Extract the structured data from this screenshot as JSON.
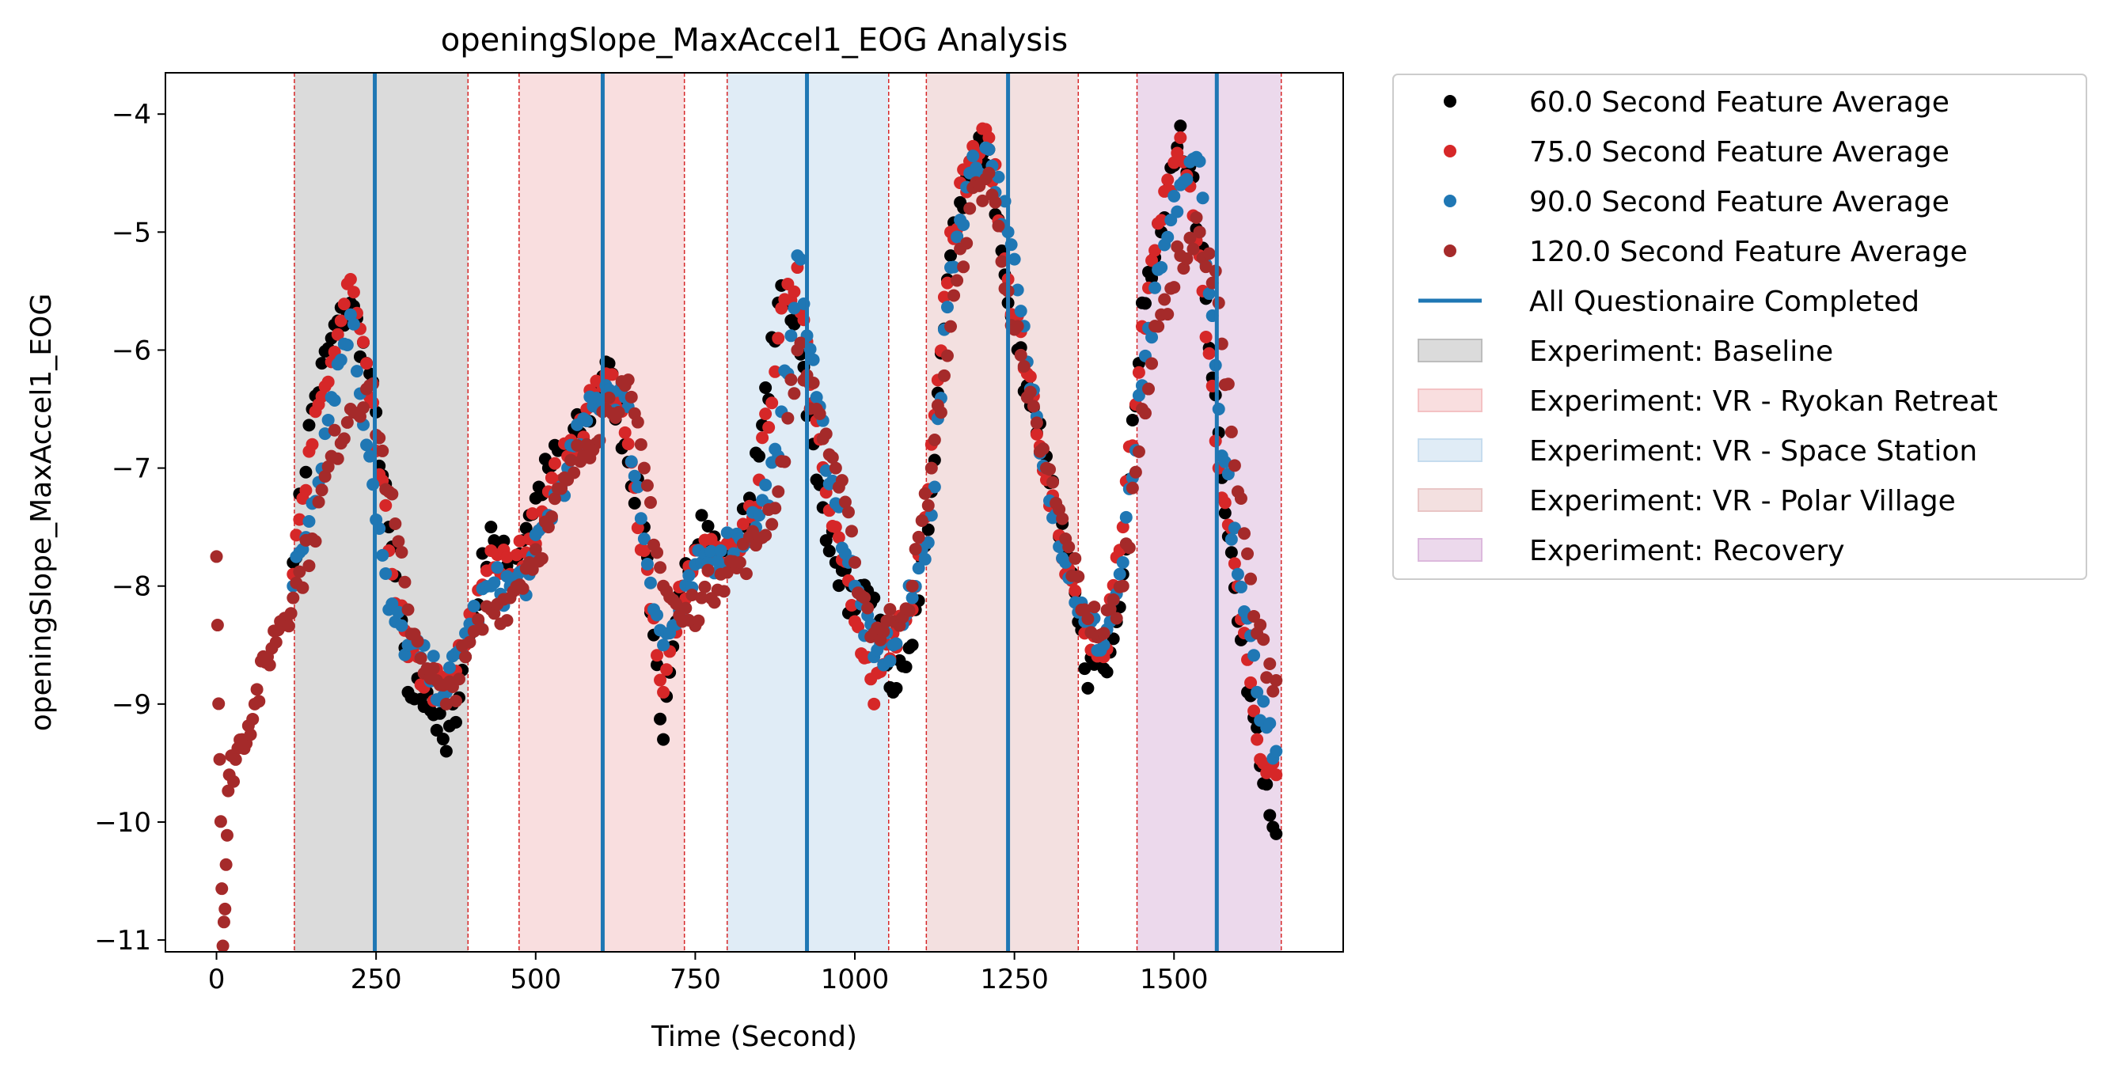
{
  "chart_data": {
    "type": "scatter",
    "title": "openingSlope_MaxAccel1_EOG Analysis",
    "xlabel": "Time (Second)",
    "ylabel": "openingSlope_MaxAccel1_EOG",
    "xlim": [
      -80,
      1765
    ],
    "ylim": [
      -11.1,
      -3.65
    ],
    "xticks": [
      0,
      250,
      500,
      750,
      1000,
      1250,
      1500
    ],
    "yticks": [
      -11,
      -10,
      -9,
      -8,
      -7,
      -6,
      -5,
      -4
    ],
    "grid": false,
    "legend_position": "outside-right",
    "series": [
      {
        "name": "60.0 Second Feature Average",
        "color": "#000000",
        "x": [
          120,
          150,
          180,
          210,
          240,
          270,
          300,
          330,
          360,
          390,
          430,
          460,
          490,
          520,
          550,
          580,
          610,
          640,
          670,
          700,
          730,
          760,
          790,
          820,
          850,
          880,
          910,
          940,
          970,
          1000,
          1030,
          1060,
          1090,
          1120,
          1150,
          1180,
          1210,
          1240,
          1270,
          1300,
          1330,
          1360,
          1390,
          1420,
          1450,
          1480,
          1510,
          1540,
          1570,
          1600,
          1630,
          1660
        ],
        "y": [
          -7.8,
          -6.5,
          -5.9,
          -5.6,
          -6.2,
          -7.5,
          -8.9,
          -8.9,
          -9.4,
          -8.6,
          -7.5,
          -7.9,
          -7.4,
          -7.0,
          -6.8,
          -6.6,
          -6.1,
          -6.8,
          -7.5,
          -9.3,
          -8.0,
          -7.4,
          -7.8,
          -7.6,
          -6.9,
          -5.6,
          -5.7,
          -7.1,
          -7.8,
          -8.2,
          -8.1,
          -8.9,
          -8.5,
          -7.2,
          -5.2,
          -4.4,
          -4.3,
          -5.6,
          -6.3,
          -6.9,
          -7.7,
          -8.7,
          -8.7,
          -7.9,
          -5.6,
          -5.0,
          -4.1,
          -5.0,
          -6.7,
          -8.3,
          -9.2,
          -10.1
        ]
      },
      {
        "name": "75.0 Second Feature Average",
        "color": "#d62728",
        "x": [
          120,
          150,
          180,
          210,
          240,
          270,
          300,
          330,
          360,
          390,
          430,
          460,
          490,
          520,
          550,
          580,
          610,
          640,
          670,
          700,
          730,
          760,
          790,
          820,
          850,
          880,
          910,
          940,
          970,
          1000,
          1030,
          1060,
          1090,
          1120,
          1150,
          1180,
          1210,
          1240,
          1270,
          1300,
          1330,
          1360,
          1390,
          1420,
          1450,
          1480,
          1510,
          1540,
          1570,
          1600,
          1630,
          1660
        ],
        "y": [
          -7.9,
          -6.8,
          -6.1,
          -5.4,
          -6.4,
          -7.7,
          -8.6,
          -8.8,
          -8.9,
          -8.5,
          -7.7,
          -7.9,
          -7.6,
          -7.2,
          -6.9,
          -6.5,
          -6.2,
          -6.7,
          -7.7,
          -8.9,
          -8.0,
          -7.7,
          -7.8,
          -7.7,
          -7.1,
          -5.9,
          -5.3,
          -6.6,
          -7.5,
          -8.3,
          -9.0,
          -8.4,
          -8.2,
          -6.8,
          -5.0,
          -4.4,
          -4.2,
          -5.4,
          -6.2,
          -7.1,
          -7.9,
          -8.4,
          -8.6,
          -7.5,
          -5.8,
          -4.9,
          -4.2,
          -5.2,
          -7.0,
          -8.0,
          -9.3,
          -9.6
        ]
      },
      {
        "name": "90.0 Second Feature Average",
        "color": "#1f77b4",
        "x": [
          120,
          150,
          180,
          210,
          240,
          270,
          300,
          330,
          360,
          390,
          430,
          460,
          490,
          520,
          550,
          580,
          610,
          640,
          670,
          700,
          730,
          760,
          790,
          820,
          850,
          880,
          910,
          940,
          970,
          1000,
          1030,
          1060,
          1090,
          1120,
          1150,
          1180,
          1210,
          1240,
          1270,
          1300,
          1330,
          1360,
          1390,
          1420,
          1450,
          1480,
          1510,
          1540,
          1570,
          1600,
          1630,
          1660
        ],
        "y": [
          -8.0,
          -7.3,
          -6.4,
          -5.7,
          -6.9,
          -8.2,
          -8.5,
          -8.7,
          -8.9,
          -8.4,
          -8.0,
          -8.0,
          -7.9,
          -7.4,
          -7.0,
          -6.6,
          -6.3,
          -6.4,
          -7.6,
          -8.5,
          -8.2,
          -7.8,
          -7.7,
          -7.6,
          -7.4,
          -6.9,
          -5.2,
          -6.4,
          -7.3,
          -8.0,
          -8.6,
          -8.5,
          -8.1,
          -7.4,
          -5.3,
          -4.5,
          -4.3,
          -5.0,
          -6.1,
          -7.0,
          -7.8,
          -8.3,
          -8.5,
          -7.8,
          -6.3,
          -5.3,
          -4.6,
          -4.4,
          -6.5,
          -7.9,
          -8.9,
          -9.4
        ]
      },
      {
        "name": "120.0 Second Feature Average",
        "color": "#a52a2a",
        "x": [
          0,
          10,
          20,
          40,
          60,
          80,
          100,
          120,
          150,
          180,
          210,
          240,
          270,
          300,
          330,
          360,
          390,
          430,
          460,
          490,
          520,
          550,
          580,
          610,
          640,
          670,
          700,
          730,
          760,
          790,
          820,
          850,
          880,
          910,
          940,
          970,
          1000,
          1030,
          1060,
          1090,
          1120,
          1150,
          1180,
          1210,
          1240,
          1270,
          1300,
          1330,
          1360,
          1390,
          1420,
          1450,
          1480,
          1510,
          1540,
          1570,
          1600,
          1630,
          1660
        ],
        "y": [
          -7.75,
          -11.05,
          -9.6,
          -9.3,
          -9.0,
          -8.6,
          -8.3,
          -8.1,
          -7.6,
          -6.9,
          -6.5,
          -6.3,
          -7.2,
          -8.2,
          -8.7,
          -9.0,
          -8.6,
          -8.2,
          -8.1,
          -7.8,
          -7.5,
          -7.1,
          -6.8,
          -6.5,
          -6.3,
          -7.0,
          -8.0,
          -8.3,
          -8.1,
          -7.9,
          -7.8,
          -7.6,
          -7.2,
          -6.0,
          -6.5,
          -7.0,
          -7.8,
          -8.4,
          -8.3,
          -8.0,
          -7.0,
          -5.8,
          -4.8,
          -4.5,
          -5.5,
          -6.4,
          -7.0,
          -7.6,
          -8.2,
          -8.4,
          -8.0,
          -6.5,
          -5.7,
          -5.2,
          -5.0,
          -5.6,
          -7.2,
          -8.4,
          -8.8
        ]
      }
    ],
    "vlines": {
      "name": "All Questionaire Completed",
      "color": "#1f77b4",
      "x": [
        248,
        605,
        925,
        1240,
        1567
      ]
    },
    "spans": [
      {
        "name": "Experiment: Baseline",
        "color": "#bdbdbd",
        "ranges": [
          [
            122,
            394
          ]
        ]
      },
      {
        "name": "Experiment: VR - Ryokan Retreat",
        "color": "#f4c2c4",
        "ranges": [
          [
            474,
            733
          ]
        ]
      },
      {
        "name": "Experiment: VR - Space Station",
        "color": "#c6dcee",
        "ranges": [
          [
            800,
            1053
          ]
        ]
      },
      {
        "name": "Experiment: VR - Polar Village",
        "color": "#e9c6c6",
        "ranges": [
          [
            1112,
            1350
          ]
        ]
      },
      {
        "name": "Experiment: Recovery",
        "color": "#dcb9dd",
        "ranges": [
          [
            1442,
            1668
          ]
        ]
      }
    ]
  }
}
